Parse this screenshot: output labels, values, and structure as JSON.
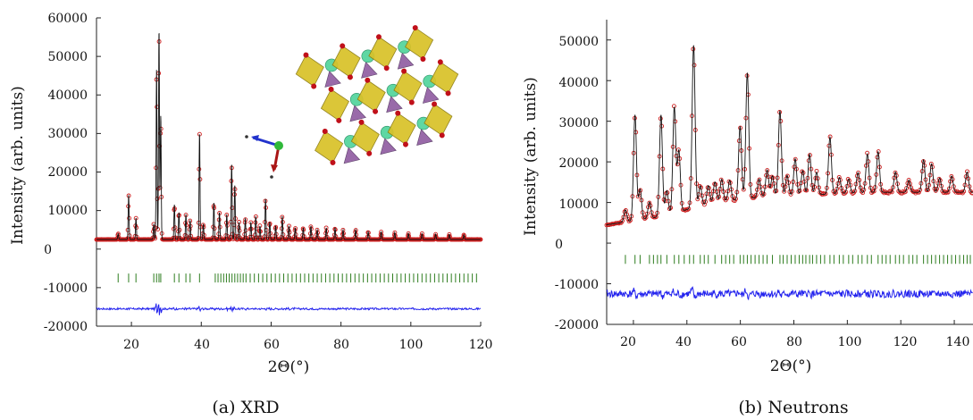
{
  "chart_data": [
    {
      "type": "line",
      "caption": "(a) XRD",
      "xlabel": "2Θ(°)",
      "ylabel": "Intensity (arb. units)",
      "xlim": [
        10,
        120
      ],
      "ylim": [
        -20000,
        60000
      ],
      "xticks": [
        "20",
        "40",
        "60",
        "80",
        "100",
        "120"
      ],
      "yticks": [
        "60000",
        "50000",
        "40000",
        "30000",
        "20000",
        "10000",
        "0",
        "-10000",
        "-20000"
      ],
      "series": [
        {
          "role": "observed",
          "marker": "open-circle",
          "color": "#cc1f1f",
          "baseline": 2500,
          "peaks": [
            [
              16.2,
              1500
            ],
            [
              19.2,
              11500
            ],
            [
              21.3,
              5500
            ],
            [
              26.4,
              4000
            ],
            [
              27.2,
              44000
            ],
            [
              27.9,
              54000
            ],
            [
              28.4,
              32000
            ],
            [
              32.3,
              9000
            ],
            [
              33.6,
              7000
            ],
            [
              35.6,
              6500
            ],
            [
              36.8,
              5000
            ],
            [
              39.5,
              27500
            ],
            [
              40.6,
              4000
            ],
            [
              43.6,
              9500
            ],
            [
              45.2,
              7000
            ],
            [
              47.3,
              6500
            ],
            [
              48.7,
              19500
            ],
            [
              49.6,
              14000
            ],
            [
              50.8,
              4500
            ],
            [
              52.6,
              5500
            ],
            [
              54.2,
              4500
            ],
            [
              55.6,
              6000
            ],
            [
              56.8,
              3500
            ],
            [
              58.4,
              10500
            ],
            [
              59.6,
              4500
            ],
            [
              61.3,
              3500
            ],
            [
              63.2,
              6000
            ],
            [
              65.1,
              3500
            ],
            [
              66.9,
              3000
            ],
            [
              69.2,
              3000
            ],
            [
              71.4,
              3500
            ],
            [
              73.2,
              2500
            ],
            [
              75.8,
              3000
            ],
            [
              78.3,
              3000
            ],
            [
              80.6,
              2500
            ],
            [
              84.2,
              2500
            ],
            [
              87.8,
              2000
            ],
            [
              91.5,
              2000
            ],
            [
              95.4,
              1800
            ],
            [
              99.3,
              1600
            ],
            [
              103.2,
              1500
            ],
            [
              107.1,
              1400
            ],
            [
              111.0,
              1300
            ],
            [
              115.2,
              1200
            ]
          ]
        },
        {
          "role": "calculated",
          "color": "#111111"
        },
        {
          "role": "difference",
          "color": "#2222ee",
          "offset": -15500
        },
        {
          "role": "bragg-positions",
          "color": "#2e7d1f",
          "y": -7500,
          "x": [
            16.2,
            19.2,
            21.3,
            26.4,
            27.2,
            27.9,
            28.4,
            32.3,
            33.6,
            35.6,
            36.8,
            39.5,
            44.0,
            44.8,
            45.6,
            46.4,
            47.2,
            48.0,
            48.8,
            49.6,
            50.4,
            51.2,
            52.0,
            52.8,
            54.0,
            55.2,
            56.4,
            57.6,
            58.8,
            60.0,
            61.2,
            62.4,
            63.6,
            64.8,
            66.0,
            67.2,
            68.4,
            69.6,
            70.8,
            72.0,
            73.2,
            74.4,
            75.6,
            76.8,
            78.0,
            79.2,
            80.4,
            81.6,
            82.8,
            84.0,
            85.2,
            86.4,
            87.6,
            88.8,
            90.0,
            91.2,
            92.4,
            93.6,
            94.8,
            96.0,
            97.2,
            98.4,
            99.6,
            100.8,
            102.0,
            103.2,
            104.4,
            105.6,
            106.8,
            108.0,
            109.2,
            110.4,
            111.6,
            112.8,
            114.0,
            115.2,
            116.4,
            117.6,
            118.8
          ]
        }
      ]
    },
    {
      "type": "line",
      "caption": "(b) Neutrons",
      "xlabel": "2Θ(°)",
      "ylabel": "Intensity (arb. units)",
      "xlim": [
        10,
        147
      ],
      "ylim": [
        -20000,
        55000
      ],
      "xticks": [
        "20",
        "40",
        "60",
        "80",
        "100",
        "120",
        "140"
      ],
      "yticks": [
        "50000",
        "40000",
        "30000",
        "20000",
        "10000",
        "0",
        "-10000",
        "-20000"
      ],
      "series": [
        {
          "role": "observed",
          "marker": "open-circle",
          "color": "#cc1f1f",
          "background": [
            [
              10,
              4500
            ],
            [
              30,
              6500
            ],
            [
              50,
              10000
            ],
            [
              70,
              11500
            ],
            [
              90,
              12000
            ],
            [
              110,
              12500
            ],
            [
              147,
              12500
            ]
          ],
          "peaks": [
            [
              17.0,
              3000
            ],
            [
              20.6,
              26000
            ],
            [
              22.5,
              7500
            ],
            [
              26.0,
              4000
            ],
            [
              30.3,
              25000
            ],
            [
              32.5,
              6000
            ],
            [
              35.3,
              26000
            ],
            [
              37.0,
              15000
            ],
            [
              42.5,
              40000
            ],
            [
              45.0,
              5000
            ],
            [
              48.0,
              4500
            ],
            [
              50.5,
              5000
            ],
            [
              53.0,
              5500
            ],
            [
              56.0,
              5000
            ],
            [
              59.9,
              18000
            ],
            [
              62.6,
              31000
            ],
            [
              67.0,
              4500
            ],
            [
              70.0,
              6500
            ],
            [
              72.0,
              5000
            ],
            [
              74.8,
              21000
            ],
            [
              77.5,
              5000
            ],
            [
              80.5,
              9000
            ],
            [
              83.3,
              6000
            ],
            [
              85.9,
              10000
            ],
            [
              88.5,
              5500
            ],
            [
              93.5,
              14000
            ],
            [
              97.0,
              4000
            ],
            [
              100.5,
              3500
            ],
            [
              104.0,
              5000
            ],
            [
              107.5,
              9500
            ],
            [
              111.5,
              10000
            ],
            [
              118.0,
              5000
            ],
            [
              123.0,
              3000
            ],
            [
              128.5,
              8000
            ],
            [
              131.5,
              7000
            ],
            [
              134.5,
              3500
            ],
            [
              139.0,
              4000
            ],
            [
              144.8,
              5000
            ]
          ]
        },
        {
          "role": "calculated",
          "color": "#111111"
        },
        {
          "role": "difference",
          "color": "#2222ee",
          "offset": -12500
        },
        {
          "role": "bragg-positions",
          "color": "#2e7d1f",
          "y": -4000,
          "x": [
            17.0,
            20.6,
            22.5,
            26.0,
            27.5,
            29.0,
            30.3,
            32.5,
            35.3,
            37.0,
            39.0,
            41.0,
            42.5,
            45.0,
            46.5,
            48.0,
            50.5,
            53.0,
            54.5,
            56.0,
            57.5,
            59.9,
            61.2,
            62.6,
            64.0,
            65.5,
            67.0,
            68.5,
            70.0,
            72.0,
            74.8,
            76.0,
            77.5,
            79.0,
            80.5,
            82.0,
            83.3,
            84.5,
            85.9,
            87.0,
            88.5,
            90.0,
            91.5,
            93.5,
            95.0,
            97.0,
            98.5,
            100.5,
            102.0,
            104.0,
            105.5,
            107.5,
            109.0,
            111.5,
            113.0,
            114.5,
            116.0,
            118.0,
            119.5,
            121.0,
            123.0,
            124.5,
            126.0,
            128.5,
            130.0,
            131.5,
            133.0,
            134.5,
            136.0,
            137.5,
            139.0,
            140.5,
            142.0,
            143.5,
            144.8,
            146.0
          ]
        }
      ]
    }
  ],
  "inset": {
    "description": "crystal-structure",
    "polyhedra_color": "#d9c228",
    "tetrahedra_color": "#8e5aa0",
    "atom_color": "#5fd7a3",
    "oxygen_color": "#c0101a",
    "axes_colors": [
      "#2233cc",
      "#aa1515",
      "#2fb83a"
    ]
  }
}
